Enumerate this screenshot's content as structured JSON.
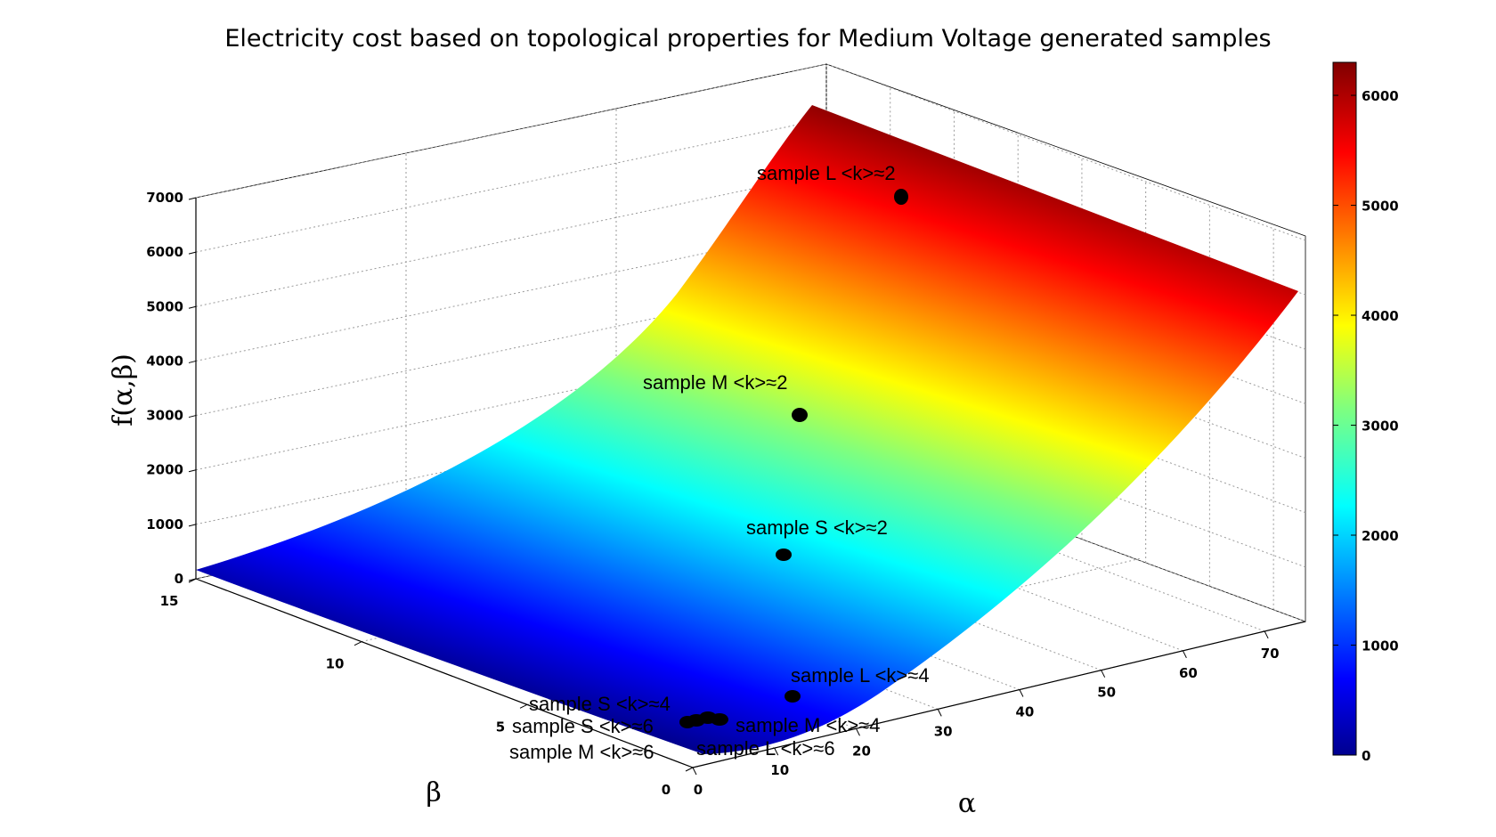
{
  "chart_data": {
    "type": "surface3d",
    "title": "Electricity cost based on topological properties for Medium Voltage generated samples",
    "xlabel": "α",
    "ylabel": "β",
    "zlabel": "f(α,β)",
    "xlim": [
      0,
      75
    ],
    "ylim": [
      0,
      15
    ],
    "zlim": [
      0,
      7000
    ],
    "x_ticks": [
      "0",
      "10",
      "20",
      "30",
      "40",
      "50",
      "60",
      "70"
    ],
    "y_ticks": [
      "0",
      "5",
      "10",
      "15"
    ],
    "z_ticks": [
      "0",
      "1000",
      "2000",
      "3000",
      "4000",
      "5000",
      "6000",
      "7000"
    ],
    "colorbar": {
      "colormap": "jet",
      "range": [
        0,
        6300
      ],
      "ticks": [
        "0",
        "1000",
        "2000",
        "3000",
        "4000",
        "5000",
        "6000"
      ]
    },
    "grid": true,
    "surface_corners": [
      {
        "alpha": 0,
        "beta": 0,
        "f": 0
      },
      {
        "alpha": 75,
        "beta": 0,
        "f": 6300
      },
      {
        "alpha": 0,
        "beta": 15,
        "f": 150
      },
      {
        "alpha": 75,
        "beta": 15,
        "f": 5400
      }
    ],
    "samples": [
      {
        "label": "sample L <k>≈2",
        "alpha": 40,
        "beta": 1,
        "f": 5200
      },
      {
        "label": "sample M <k>≈2",
        "alpha": 22,
        "beta": 1,
        "f": 2400
      },
      {
        "label": "sample S <k>≈2",
        "alpha": 12,
        "beta": 1,
        "f": 900
      },
      {
        "label": "sample L <k>≈4",
        "alpha": 5,
        "beta": 1.5,
        "f": 300
      },
      {
        "label": "sample M <k>≈4",
        "alpha": 3,
        "beta": 2.5,
        "f": 150
      },
      {
        "label": "sample S <k>≈4",
        "alpha": 2,
        "beta": 2.5,
        "f": 120
      },
      {
        "label": "sample L <k>≈6",
        "alpha": 3,
        "beta": 3,
        "f": 120
      },
      {
        "label": "sample S <k>≈6",
        "alpha": 2,
        "beta": 3,
        "f": 100
      },
      {
        "label": "sample M <k>≈6",
        "alpha": 2,
        "beta": 3.2,
        "f": 100
      }
    ]
  }
}
